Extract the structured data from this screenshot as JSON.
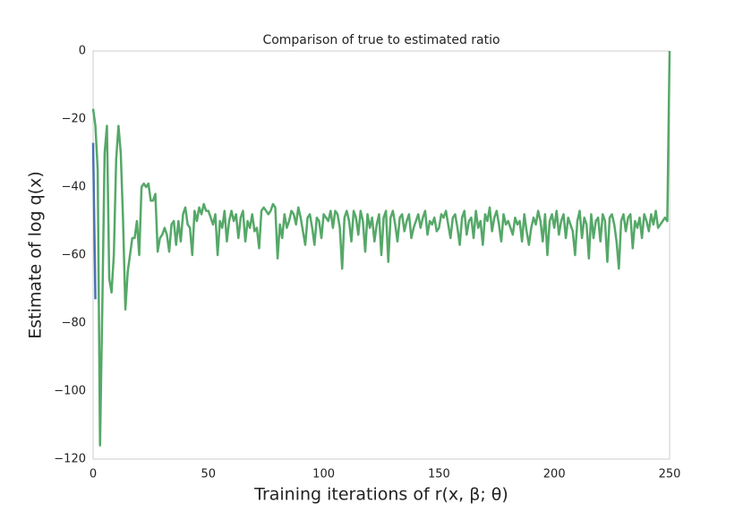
{
  "chart_data": {
    "type": "line",
    "title": "Comparison of true to estimated ratio",
    "xlabel": "Training iterations of r(x, β; θ)",
    "ylabel": "Estimate of log q(x)",
    "xlim": [
      0,
      250
    ],
    "xticks": [
      0,
      50,
      100,
      150,
      200,
      250
    ],
    "ylim": [
      -120,
      0
    ],
    "yticks": [
      {
        "value": -120,
        "label": "−120"
      },
      {
        "value": -100,
        "label": "−100"
      },
      {
        "value": -80,
        "label": "−80"
      },
      {
        "value": -60,
        "label": "−60"
      },
      {
        "value": -40,
        "label": "−40"
      },
      {
        "value": -20,
        "label": "−20"
      },
      0
    ],
    "grid": false,
    "series": [
      {
        "color": "#4c72b0",
        "x": [
          0,
          1
        ],
        "values": [
          -27,
          -73
        ]
      },
      {
        "color": "#55a868",
        "x": [
          0,
          1,
          2,
          3,
          4,
          5,
          6,
          7,
          8,
          9,
          10,
          11,
          12,
          13,
          14,
          15,
          16,
          17,
          18,
          19,
          20,
          21,
          22,
          23,
          24,
          25,
          26,
          27,
          28,
          29,
          30,
          31,
          32,
          33,
          34,
          35,
          36,
          37,
          38,
          39,
          40,
          41,
          42,
          43,
          44,
          45,
          46,
          47,
          48,
          49,
          50,
          51,
          52,
          53,
          54,
          55,
          56,
          57,
          58,
          59,
          60,
          61,
          62,
          63,
          64,
          65,
          66,
          67,
          68,
          69,
          70,
          71,
          72,
          73,
          74,
          75,
          76,
          77,
          78,
          79,
          80,
          81,
          82,
          83,
          84,
          85,
          86,
          87,
          88,
          89,
          90,
          91,
          92,
          93,
          94,
          95,
          96,
          97,
          98,
          99,
          100,
          101,
          102,
          103,
          104,
          105,
          106,
          107,
          108,
          109,
          110,
          111,
          112,
          113,
          114,
          115,
          116,
          117,
          118,
          119,
          120,
          121,
          122,
          123,
          124,
          125,
          126,
          127,
          128,
          129,
          130,
          131,
          132,
          133,
          134,
          135,
          136,
          137,
          138,
          139,
          140,
          141,
          142,
          143,
          144,
          145,
          146,
          147,
          148,
          149,
          150,
          151,
          152,
          153,
          154,
          155,
          156,
          157,
          158,
          159,
          160,
          161,
          162,
          163,
          164,
          165,
          166,
          167,
          168,
          169,
          170,
          171,
          172,
          173,
          174,
          175,
          176,
          177,
          178,
          179,
          180,
          181,
          182,
          183,
          184,
          185,
          186,
          187,
          188,
          189,
          190,
          191,
          192,
          193,
          194,
          195,
          196,
          197,
          198,
          199,
          200,
          201,
          202,
          203,
          204,
          205,
          206,
          207,
          208,
          209,
          210,
          211,
          212,
          213,
          214,
          215,
          216,
          217,
          218,
          219,
          220,
          221,
          222,
          223,
          224,
          225,
          226,
          227,
          228,
          229,
          230,
          231,
          232,
          233,
          234,
          235,
          236,
          237,
          238,
          239,
          240,
          241,
          242,
          243,
          244,
          245,
          246,
          247,
          248,
          249,
          250
        ],
        "values": [
          -17,
          -22,
          -35,
          -116,
          -75,
          -30,
          -22,
          -67,
          -71,
          -60,
          -32,
          -22,
          -30,
          -50,
          -76,
          -65,
          -60,
          -55,
          -55,
          -50,
          -60,
          -40,
          -39,
          -40,
          -39,
          -44,
          -44,
          -42,
          -59,
          -55,
          -54,
          -52,
          -54,
          -59,
          -51,
          -50,
          -57,
          -50,
          -56,
          -48,
          -46,
          -51,
          -52,
          -60,
          -47,
          -50,
          -46,
          -48,
          -45,
          -47,
          -47,
          -49,
          -51,
          -48,
          -60,
          -50,
          -52,
          -47,
          -56,
          -50,
          -47,
          -50,
          -48,
          -55,
          -49,
          -47,
          -56,
          -50,
          -52,
          -48,
          -53,
          -52,
          -58,
          -47,
          -46,
          -47,
          -48,
          -47,
          -45,
          -46,
          -61,
          -51,
          -55,
          -48,
          -52,
          -50,
          -47,
          -48,
          -51,
          -46,
          -49,
          -53,
          -57,
          -49,
          -48,
          -52,
          -57,
          -49,
          -50,
          -55,
          -48,
          -49,
          -50,
          -47,
          -52,
          -47,
          -48,
          -52,
          -64,
          -49,
          -47,
          -50,
          -56,
          -47,
          -49,
          -54,
          -47,
          -50,
          -59,
          -48,
          -52,
          -49,
          -56,
          -51,
          -48,
          -60,
          -49,
          -47,
          -62,
          -49,
          -47,
          -51,
          -56,
          -49,
          -48,
          -53,
          -50,
          -48,
          -55,
          -52,
          -50,
          -48,
          -52,
          -49,
          -47,
          -54,
          -50,
          -51,
          -49,
          -53,
          -52,
          -48,
          -49,
          -47,
          -51,
          -55,
          -49,
          -48,
          -52,
          -57,
          -49,
          -47,
          -54,
          -50,
          -49,
          -55,
          -47,
          -52,
          -50,
          -57,
          -48,
          -50,
          -46,
          -53,
          -49,
          -47,
          -51,
          -56,
          -48,
          -51,
          -50,
          -52,
          -54,
          -49,
          -51,
          -50,
          -56,
          -48,
          -53,
          -57,
          -52,
          -49,
          -51,
          -47,
          -50,
          -56,
          -48,
          -60,
          -50,
          -48,
          -52,
          -47,
          -54,
          -50,
          -48,
          -55,
          -49,
          -51,
          -53,
          -60,
          -50,
          -47,
          -55,
          -49,
          -51,
          -61,
          -48,
          -55,
          -50,
          -49,
          -56,
          -48,
          -50,
          -62,
          -49,
          -48,
          -51,
          -56,
          -64,
          -50,
          -48,
          -53,
          -49,
          -48,
          -58,
          -50,
          -52,
          -49,
          -55,
          -48,
          -50,
          -53,
          -48,
          -51,
          -47,
          -52,
          -51,
          -50,
          -49,
          -50,
          0
        ]
      }
    ]
  }
}
